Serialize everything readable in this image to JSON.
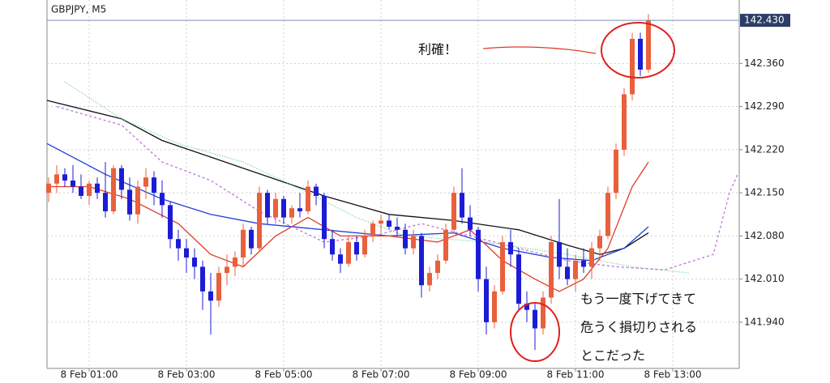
{
  "chart_data": {
    "type": "candlestick",
    "title": "GBPJPY, M5",
    "up_color": "#e8603c",
    "down_color": "#1c1cd6",
    "grid": true,
    "xlim": [
      8,
      862
    ],
    "ylim": [
      141.865,
      142.463
    ],
    "xticks": [
      {
        "value": 60,
        "label": "8 Feb 01:00"
      },
      {
        "value": 180,
        "label": "8 Feb 03:00"
      },
      {
        "value": 300,
        "label": "8 Feb 05:00"
      },
      {
        "value": 420,
        "label": "8 Feb 07:00"
      },
      {
        "value": 540,
        "label": "8 Feb 09:00"
      },
      {
        "value": 660,
        "label": "8 Feb 11:00"
      },
      {
        "value": 780,
        "label": "8 Feb 13:00"
      }
    ],
    "yticks": [
      {
        "value": 141.94,
        "label": "141.940"
      },
      {
        "value": 142.01,
        "label": "142.010"
      },
      {
        "value": 142.08,
        "label": "142.080"
      },
      {
        "value": 142.15,
        "label": "142.150"
      },
      {
        "value": 142.22,
        "label": "142.220"
      },
      {
        "value": 142.29,
        "label": "142.290"
      },
      {
        "value": 142.36,
        "label": "142.360"
      }
    ],
    "current_price": {
      "value": 142.43,
      "label": "142.430"
    },
    "x": [
      10,
      20,
      30,
      40,
      50,
      60,
      70,
      80,
      90,
      100,
      110,
      120,
      130,
      140,
      150,
      160,
      170,
      180,
      190,
      200,
      210,
      220,
      230,
      240,
      250,
      260,
      270,
      280,
      290,
      300,
      310,
      320,
      330,
      340,
      350,
      360,
      370,
      380,
      390,
      400,
      410,
      420,
      430,
      440,
      450,
      460,
      470,
      480,
      490,
      500,
      510,
      520,
      530,
      540,
      550,
      560,
      570,
      580,
      590,
      600,
      610,
      620,
      630,
      640,
      650,
      660,
      670,
      680,
      690,
      700,
      710,
      720,
      730,
      740,
      750
    ],
    "open": [
      142.15,
      142.165,
      142.18,
      142.17,
      142.16,
      142.145,
      142.165,
      142.15,
      142.12,
      142.19,
      142.155,
      142.115,
      142.16,
      142.175,
      142.15,
      142.13,
      142.075,
      142.06,
      142.045,
      142.03,
      141.99,
      141.975,
      142.02,
      142.03,
      142.045,
      142.09,
      142.06,
      142.15,
      142.11,
      142.14,
      142.11,
      142.125,
      142.12,
      142.16,
      142.145,
      142.075,
      142.05,
      142.035,
      142.07,
      142.05,
      142.08,
      142.1,
      142.105,
      142.095,
      142.09,
      142.06,
      142.08,
      142.0,
      142.02,
      142.04,
      142.09,
      142.15,
      142.11,
      142.09,
      142.01,
      141.94,
      141.99,
      142.07,
      142.05,
      141.97,
      141.96,
      141.93,
      141.98,
      142.07,
      142.03,
      142.01,
      142.04,
      142.03,
      142.06,
      142.08,
      142.15,
      142.22,
      142.31,
      142.4,
      142.35
    ],
    "high": [
      142.175,
      142.195,
      142.19,
      142.195,
      142.18,
      142.17,
      142.175,
      142.2,
      142.195,
      142.195,
      142.175,
      142.17,
      142.19,
      142.185,
      142.17,
      142.135,
      142.09,
      142.075,
      142.06,
      142.04,
      142.02,
      142.03,
      142.05,
      142.055,
      142.1,
      142.095,
      142.16,
      142.155,
      142.15,
      142.145,
      142.13,
      142.15,
      142.17,
      142.165,
      142.15,
      142.09,
      142.06,
      142.08,
      142.08,
      142.09,
      142.105,
      142.115,
      142.115,
      142.11,
      142.1,
      142.09,
      142.085,
      142.03,
      142.05,
      142.1,
      142.16,
      142.19,
      142.13,
      142.095,
      142.03,
      142.0,
      142.08,
      142.09,
      142.06,
      141.99,
      141.97,
      141.99,
      142.08,
      142.14,
      142.06,
      142.05,
      142.06,
      142.07,
      142.09,
      142.16,
      142.23,
      142.32,
      142.41,
      142.41,
      142.44
    ],
    "low": [
      142.135,
      142.15,
      142.16,
      142.15,
      142.14,
      142.13,
      142.14,
      142.11,
      142.115,
      142.14,
      142.105,
      142.1,
      142.14,
      142.13,
      142.11,
      142.06,
      142.04,
      142.02,
      142.01,
      141.96,
      141.92,
      141.965,
      142.0,
      142.015,
      142.03,
      142.05,
      142.055,
      142.1,
      142.1,
      142.1,
      142.1,
      142.11,
      142.115,
      142.13,
      142.06,
      142.04,
      142.02,
      142.03,
      142.04,
      142.045,
      142.07,
      142.085,
      142.09,
      142.08,
      142.05,
      142.05,
      141.98,
      141.99,
      142.01,
      142.035,
      142.085,
      142.1,
      142.08,
      141.99,
      141.92,
      141.93,
      141.985,
      142.03,
      141.96,
      141.94,
      141.895,
      141.92,
      141.97,
      142.01,
      142.0,
      141.99,
      142.02,
      142.01,
      142.04,
      142.075,
      142.14,
      142.21,
      142.3,
      142.34,
      142.345
    ],
    "close": [
      142.165,
      142.18,
      142.17,
      142.16,
      142.145,
      142.165,
      142.15,
      142.12,
      142.19,
      142.155,
      142.115,
      142.16,
      142.175,
      142.15,
      142.13,
      142.075,
      142.06,
      142.045,
      142.03,
      141.99,
      141.975,
      142.02,
      142.03,
      142.045,
      142.09,
      142.06,
      142.15,
      142.11,
      142.14,
      142.11,
      142.125,
      142.12,
      142.16,
      142.145,
      142.075,
      142.05,
      142.035,
      142.07,
      142.05,
      142.08,
      142.1,
      142.105,
      142.095,
      142.09,
      142.06,
      142.08,
      142.0,
      142.02,
      142.04,
      142.09,
      142.15,
      142.11,
      142.09,
      142.01,
      141.94,
      141.99,
      142.07,
      142.05,
      141.97,
      141.96,
      141.93,
      141.98,
      142.07,
      142.03,
      142.01,
      142.04,
      142.03,
      142.06,
      142.08,
      142.15,
      142.22,
      142.31,
      142.4,
      142.35,
      142.43
    ],
    "lines": [
      {
        "color": "#111111",
        "style": "solid",
        "x": [
          8,
          100,
          150,
          250,
          350,
          430,
          510,
          590,
          650,
          690,
          720,
          750
        ],
        "values": [
          142.3,
          142.27,
          142.235,
          142.19,
          142.145,
          142.115,
          142.105,
          142.09,
          142.065,
          142.05,
          142.06,
          142.085
        ]
      },
      {
        "color": "#1f3fd8",
        "style": "solid",
        "x": [
          8,
          80,
          150,
          210,
          270,
          350,
          430,
          510,
          570,
          630,
          680,
          720,
          750
        ],
        "values": [
          142.23,
          142.18,
          142.14,
          142.115,
          142.1,
          142.09,
          142.08,
          142.085,
          142.06,
          142.045,
          142.04,
          142.06,
          142.095
        ]
      },
      {
        "color": "#e03a2a",
        "style": "solid",
        "x": [
          10,
          60,
          110,
          170,
          210,
          250,
          290,
          330,
          370,
          430,
          490,
          530,
          570,
          610,
          640,
          670,
          700,
          730,
          750
        ],
        "values": [
          142.16,
          142.16,
          142.14,
          142.1,
          142.05,
          142.03,
          142.08,
          142.11,
          142.08,
          142.08,
          142.07,
          142.09,
          142.04,
          142.01,
          141.99,
          142.01,
          142.06,
          142.16,
          142.2
        ]
      },
      {
        "color": "#c070e0",
        "style": "dash",
        "x": [
          20,
          100,
          150,
          210,
          270,
          350,
          410,
          470,
          530,
          590,
          650,
          710,
          770,
          830,
          850,
          860
        ],
        "values": [
          142.29,
          142.26,
          142.2,
          142.17,
          142.12,
          142.07,
          142.08,
          142.1,
          142.08,
          142.06,
          142.04,
          142.03,
          142.025,
          142.05,
          142.15,
          142.18
        ]
      },
      {
        "color": "#60d080",
        "style": "dot",
        "x": [
          30,
          100,
          170,
          250,
          330,
          390,
          450,
          550,
          650,
          730,
          800
        ],
        "values": [
          142.33,
          142.27,
          142.23,
          142.2,
          142.15,
          142.11,
          142.08,
          142.07,
          142.05,
          142.03,
          142.02
        ]
      }
    ],
    "annotations": [
      "利確！",
      "もう一度下げてきて",
      "危うく損切りされる",
      "とこだった"
    ]
  }
}
